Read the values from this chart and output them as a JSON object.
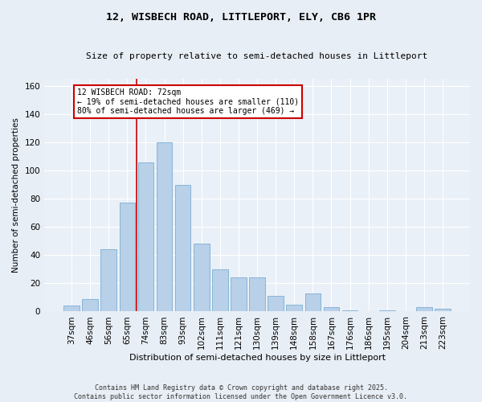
{
  "title_line1": "12, WISBECH ROAD, LITTLEPORT, ELY, CB6 1PR",
  "title_line2": "Size of property relative to semi-detached houses in Littleport",
  "xlabel": "Distribution of semi-detached houses by size in Littleport",
  "ylabel": "Number of semi-detached properties",
  "categories": [
    "37sqm",
    "46sqm",
    "56sqm",
    "65sqm",
    "74sqm",
    "83sqm",
    "93sqm",
    "102sqm",
    "111sqm",
    "121sqm",
    "130sqm",
    "139sqm",
    "148sqm",
    "158sqm",
    "167sqm",
    "176sqm",
    "186sqm",
    "195sqm",
    "204sqm",
    "213sqm",
    "223sqm"
  ],
  "values": [
    4,
    9,
    44,
    77,
    106,
    120,
    90,
    48,
    30,
    24,
    24,
    11,
    5,
    13,
    3,
    1,
    0,
    1,
    0,
    3,
    2
  ],
  "bar_color": "#b8d0e8",
  "bar_edge_color": "#7aafd4",
  "vline_color": "#cc0000",
  "vline_x_index": 4,
  "annotation_text": "12 WISBECH ROAD: 72sqm\n← 19% of semi-detached houses are smaller (110)\n80% of semi-detached houses are larger (469) →",
  "annotation_box_edge_color": "#cc0000",
  "ylim": [
    0,
    165
  ],
  "yticks": [
    0,
    20,
    40,
    60,
    80,
    100,
    120,
    140,
    160
  ],
  "footer_line1": "Contains HM Land Registry data © Crown copyright and database right 2025.",
  "footer_line2": "Contains public sector information licensed under the Open Government Licence v3.0.",
  "background_color": "#e8eef5",
  "plot_bg_color": "#eaf0f7"
}
